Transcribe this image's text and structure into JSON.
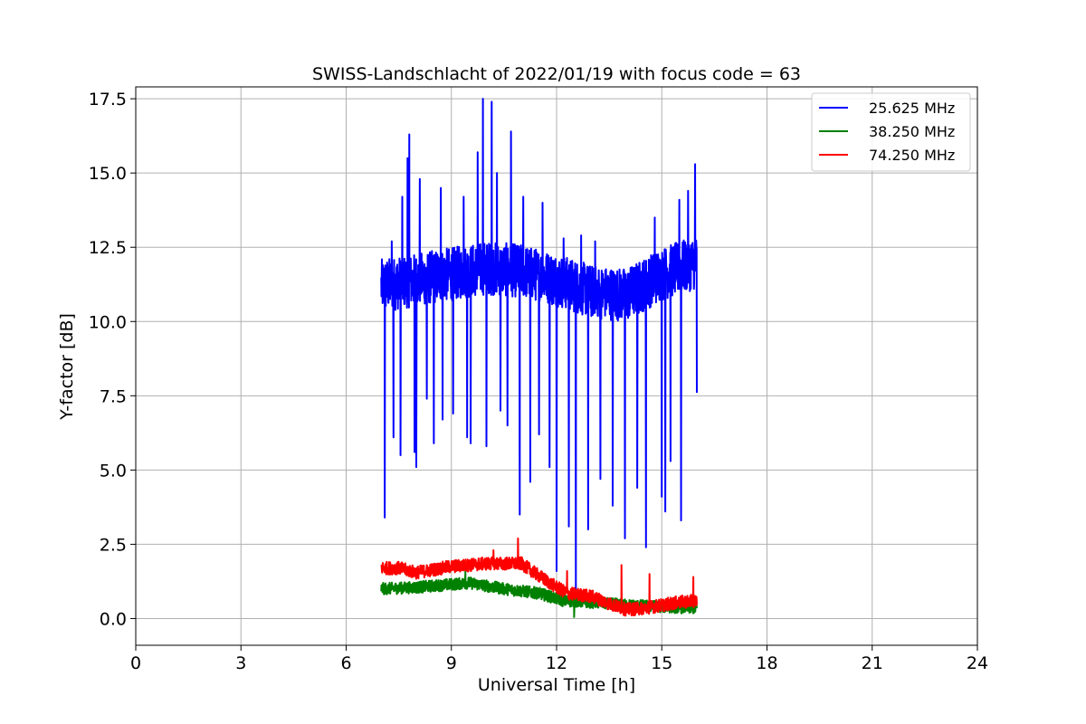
{
  "chart_data": {
    "type": "line",
    "title": "SWISS-Landschlacht of 2022/01/19 with focus code = 63",
    "xlabel": "Universal Time [h]",
    "ylabel": "Y-factor [dB]",
    "xlim": [
      0,
      24
    ],
    "ylim": [
      -0.9,
      17.9
    ],
    "xticks": [
      0,
      3,
      6,
      9,
      12,
      15,
      18,
      21,
      24
    ],
    "xtick_labels": [
      "0",
      "3",
      "6",
      "9",
      "12",
      "15",
      "18",
      "21",
      "24"
    ],
    "yticks": [
      0,
      2.5,
      5,
      7.5,
      10,
      12.5,
      15,
      17.5
    ],
    "ytick_labels": [
      "0.0",
      "2.5",
      "5.0",
      "7.5",
      "10.0",
      "12.5",
      "15.0",
      "17.5"
    ],
    "grid": true,
    "legend_position": "top-right",
    "series": [
      {
        "name": "25.625 MHz",
        "color": "#0000ff",
        "baseline": [
          [
            7.0,
            11.2
          ],
          [
            8.0,
            11.4
          ],
          [
            9.0,
            11.6
          ],
          [
            10.0,
            11.8
          ],
          [
            11.0,
            11.7
          ],
          [
            12.0,
            11.4
          ],
          [
            13.0,
            11.0
          ],
          [
            14.0,
            10.9
          ],
          [
            15.0,
            11.6
          ],
          [
            16.0,
            12.0
          ]
        ],
        "spikes": [
          [
            7.1,
            3.4
          ],
          [
            7.3,
            12.7
          ],
          [
            7.35,
            6.1
          ],
          [
            7.55,
            5.5
          ],
          [
            7.6,
            14.2
          ],
          [
            7.75,
            15.5
          ],
          [
            7.8,
            16.3
          ],
          [
            7.95,
            5.6
          ],
          [
            8.0,
            5.1
          ],
          [
            8.1,
            14.8
          ],
          [
            8.3,
            7.4
          ],
          [
            8.5,
            5.9
          ],
          [
            8.7,
            14.5
          ],
          [
            8.75,
            6.7
          ],
          [
            9.05,
            6.9
          ],
          [
            9.35,
            14.2
          ],
          [
            9.45,
            6.1
          ],
          [
            9.55,
            5.9
          ],
          [
            9.75,
            15.7
          ],
          [
            9.9,
            17.5
          ],
          [
            10.0,
            5.8
          ],
          [
            10.15,
            17.4
          ],
          [
            10.3,
            15.0
          ],
          [
            10.4,
            7.0
          ],
          [
            10.6,
            6.5
          ],
          [
            10.7,
            16.4
          ],
          [
            10.95,
            3.5
          ],
          [
            11.05,
            14.2
          ],
          [
            11.25,
            4.6
          ],
          [
            11.5,
            6.2
          ],
          [
            11.6,
            14.0
          ],
          [
            11.8,
            5.1
          ],
          [
            12.0,
            1.6
          ],
          [
            12.2,
            12.8
          ],
          [
            12.35,
            3.1
          ],
          [
            12.55,
            0.7
          ],
          [
            12.7,
            12.9
          ],
          [
            12.9,
            3.0
          ],
          [
            13.1,
            12.7
          ],
          [
            13.25,
            4.7
          ],
          [
            13.6,
            3.8
          ],
          [
            13.95,
            2.7
          ],
          [
            14.3,
            4.4
          ],
          [
            14.55,
            2.4
          ],
          [
            14.8,
            13.5
          ],
          [
            15.0,
            4.1
          ],
          [
            15.1,
            3.6
          ],
          [
            15.25,
            5.3
          ],
          [
            15.5,
            14.1
          ],
          [
            15.55,
            3.3
          ],
          [
            15.75,
            14.4
          ],
          [
            15.95,
            15.3
          ],
          [
            16.0,
            7.6
          ]
        ],
        "noise": 0.9
      },
      {
        "name": "38.250 MHz",
        "color": "#008000",
        "baseline": [
          [
            7.0,
            1.0
          ],
          [
            8.0,
            1.05
          ],
          [
            9.0,
            1.15
          ],
          [
            9.5,
            1.2
          ],
          [
            10.5,
            1.0
          ],
          [
            11.5,
            0.85
          ],
          [
            12.2,
            0.6
          ],
          [
            13.0,
            0.55
          ],
          [
            14.0,
            0.45
          ],
          [
            15.0,
            0.4
          ],
          [
            16.0,
            0.35
          ]
        ],
        "spikes": [
          [
            9.4,
            1.6
          ],
          [
            12.5,
            0.05
          ]
        ],
        "noise": 0.2
      },
      {
        "name": "74.250 MHz",
        "color": "#ff0000",
        "baseline": [
          [
            7.0,
            1.7
          ],
          [
            7.5,
            1.7
          ],
          [
            8.0,
            1.55
          ],
          [
            9.0,
            1.75
          ],
          [
            10.0,
            1.85
          ],
          [
            11.0,
            1.85
          ],
          [
            11.3,
            1.6
          ],
          [
            11.8,
            1.2
          ],
          [
            12.3,
            0.85
          ],
          [
            13.0,
            0.75
          ],
          [
            13.5,
            0.5
          ],
          [
            14.0,
            0.3
          ],
          [
            14.5,
            0.35
          ],
          [
            15.0,
            0.45
          ],
          [
            15.5,
            0.55
          ],
          [
            16.0,
            0.6
          ]
        ],
        "spikes": [
          [
            10.9,
            2.7
          ],
          [
            10.2,
            2.3
          ],
          [
            12.3,
            1.6
          ],
          [
            13.85,
            1.8
          ],
          [
            14.65,
            1.5
          ],
          [
            15.9,
            1.4
          ]
        ],
        "noise": 0.22
      }
    ]
  }
}
